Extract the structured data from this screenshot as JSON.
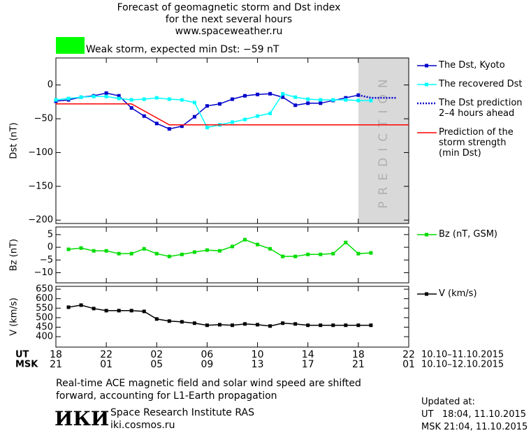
{
  "chart_data": [
    {
      "type": "line",
      "title": "Forecast of geomagnetic storm and Dst index\nfor the next several hours\nwww.spaceweather.ru",
      "status": {
        "text": "Weak storm, expected min Dst: −59 nT",
        "color": "#00ff00"
      },
      "ylabel": "Dst (nT)",
      "xlim": [
        0,
        28
      ],
      "ylim": [
        -205,
        40
      ],
      "yticks": [
        0,
        {
          "value": -50,
          "label": "−50"
        },
        {
          "value": -100,
          "label": "−100"
        },
        {
          "value": -150,
          "label": "−150"
        },
        {
          "value": -200,
          "label": "−200"
        }
      ],
      "band": {
        "xlim": [
          24,
          28
        ],
        "label": "PREDICTION",
        "color": "#d9d9d9"
      },
      "series": [
        {
          "name": "The Dst, Kyoto",
          "color": "#0000cc",
          "marker": "square",
          "x": [
            0,
            1,
            2,
            3,
            4,
            5,
            6,
            7,
            8,
            9,
            10,
            11,
            12,
            13,
            14,
            15,
            16,
            17,
            18,
            19,
            20,
            21,
            22,
            23,
            24
          ],
          "values": [
            -24,
            -22,
            -18,
            -16,
            -12,
            -16,
            -34,
            -46,
            -57,
            -65,
            -61,
            -47,
            -31,
            -28,
            -21,
            -16,
            -14,
            -13,
            -18,
            -30,
            -27,
            -27,
            -23,
            -19,
            -15
          ]
        },
        {
          "name": "The recovered Dst",
          "color": "#00ffff",
          "marker": "square",
          "x": [
            0,
            1,
            2,
            3,
            4,
            5,
            6,
            7,
            8,
            9,
            10,
            11,
            12,
            13,
            14,
            15,
            16,
            17,
            18,
            19,
            20,
            21,
            22,
            23,
            24,
            25
          ],
          "values": [
            -22,
            -20,
            -18,
            -17,
            -17,
            -20,
            -22,
            -21,
            -19,
            -21,
            -22,
            -26,
            -63,
            -59,
            -55,
            -51,
            -46,
            -42,
            -13,
            -18,
            -21,
            -22,
            -22,
            -22,
            -23,
            -23
          ]
        },
        {
          "name": "The Dst prediction\n2–4 hours ahead",
          "color": "#0000cc",
          "style": "dotted",
          "x": [
            24,
            25,
            26,
            27
          ],
          "values": [
            -15,
            -19,
            -19,
            -19
          ]
        },
        {
          "name": "Prediction of the\nstorm strength\n(min Dst)",
          "color": "#ff0000",
          "x": [
            0,
            6,
            9,
            28
          ],
          "values": [
            -28,
            -28,
            -59,
            -59
          ]
        }
      ]
    },
    {
      "type": "line",
      "ylabel": "Bz (nT)",
      "xlim": [
        0,
        28
      ],
      "ylim": [
        -14,
        8
      ],
      "yticks": [
        5,
        0,
        {
          "value": -5,
          "label": "−5"
        },
        {
          "value": -10,
          "label": "−10"
        }
      ],
      "series": [
        {
          "name": "Bz (nT, GSM)",
          "color": "#00dd00",
          "marker": "square",
          "x": [
            1,
            2,
            3,
            4,
            5,
            6,
            7,
            8,
            9,
            10,
            11,
            12,
            13,
            14,
            15,
            16,
            17,
            18,
            19,
            20,
            21,
            22,
            23,
            24,
            25
          ],
          "values": [
            -0.8,
            -0.3,
            -1.4,
            -1.4,
            -2.5,
            -2.5,
            -0.6,
            -2.5,
            -3.6,
            -2.8,
            -1.9,
            -1.1,
            -1.4,
            0.3,
            3,
            1.1,
            -0.6,
            -3.6,
            -3.6,
            -2.8,
            -2.8,
            -2.5,
            1.9,
            -2.5,
            -2.2
          ]
        }
      ]
    },
    {
      "type": "line",
      "ylabel": "V (km/s)",
      "xlim": [
        0,
        28
      ],
      "ylim": [
        345,
        665
      ],
      "yticks": [
        400,
        450,
        500,
        550,
        600,
        650
      ],
      "xticks": [
        {
          "value": 0,
          "label": "18"
        },
        {
          "value": 4,
          "label": "22"
        },
        {
          "value": 8,
          "label": "02"
        },
        {
          "value": 12,
          "label": "06"
        },
        {
          "value": 16,
          "label": "10"
        },
        {
          "value": 20,
          "label": "14"
        },
        {
          "value": 24,
          "label": "18"
        },
        {
          "value": 28,
          "label": "22"
        }
      ],
      "xtick_labels_msk": [
        "21",
        "01",
        "05",
        "09",
        "13",
        "17",
        "21",
        "01"
      ],
      "ut_label": "UT",
      "msk_label": "MSK",
      "ut_range": "10.10–11.10.2015",
      "msk_range": "10.10–12.10.2015",
      "series": [
        {
          "name": "V (km/s)",
          "color": "#000000",
          "marker": "square",
          "x": [
            1,
            2,
            3,
            4,
            5,
            6,
            7,
            8,
            9,
            10,
            11,
            12,
            13,
            14,
            15,
            16,
            17,
            18,
            19,
            20,
            21,
            22,
            23,
            24,
            25
          ],
          "values": [
            555,
            566,
            548,
            537,
            537,
            537,
            533,
            493,
            482,
            478,
            471,
            460,
            463,
            460,
            467,
            463,
            456,
            471,
            467,
            460,
            460,
            460,
            460,
            460,
            460
          ]
        }
      ]
    }
  ],
  "footer": {
    "note": "Real-time ACE magnetic field and solar wind speed are shifted\nforward, accounting for L1-Earth propagation",
    "logo": "ИКИ",
    "institute": "Space Research Institute RAS",
    "site": "iki.cosmos.ru",
    "updated_label": "Updated at:",
    "updated_ut": "UT   18:04, 11.10.2015",
    "updated_msk": "MSK 21:04, 11.10.2015"
  }
}
